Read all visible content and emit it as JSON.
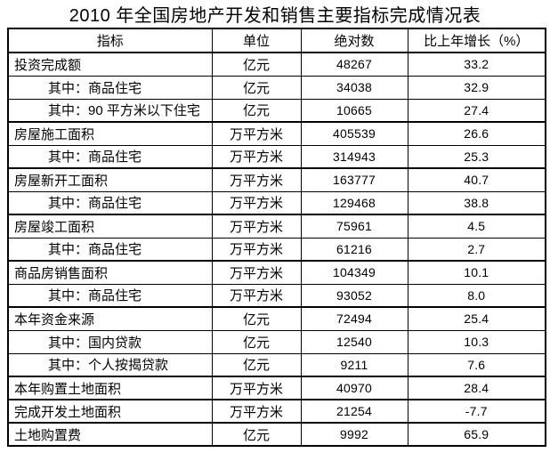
{
  "title": "2010 年全国房地产开发和销售主要指标完成情况表",
  "table": {
    "headers": [
      "指标",
      "单位",
      "绝对数",
      "比上年增长（%）"
    ],
    "rows": [
      {
        "indicator": "投资完成额",
        "indent": false,
        "unit": "亿元",
        "value": "48267",
        "growth": "33.2"
      },
      {
        "indicator": "其中：商品住宅",
        "indent": true,
        "unit": "亿元",
        "value": "34038",
        "growth": "32.9"
      },
      {
        "indicator": "其中：90 平方米以下住宅",
        "indent": true,
        "unit": "亿元",
        "value": "10665",
        "growth": "27.4"
      },
      {
        "indicator": "房屋施工面积",
        "indent": false,
        "unit": "万平方米",
        "value": "405539",
        "growth": "26.6"
      },
      {
        "indicator": "其中：商品住宅",
        "indent": true,
        "unit": "万平方米",
        "value": "314943",
        "growth": "25.3"
      },
      {
        "indicator": "房屋新开工面积",
        "indent": false,
        "unit": "万平方米",
        "value": "163777",
        "growth": "40.7"
      },
      {
        "indicator": "其中：商品住宅",
        "indent": true,
        "unit": "万平方米",
        "value": "129468",
        "growth": "38.8"
      },
      {
        "indicator": "房屋竣工面积",
        "indent": false,
        "unit": "万平方米",
        "value": "75961",
        "growth": "4.5"
      },
      {
        "indicator": "其中：商品住宅",
        "indent": true,
        "unit": "万平方米",
        "value": "61216",
        "growth": "2.7"
      },
      {
        "indicator": "商品房销售面积",
        "indent": false,
        "unit": "万平方米",
        "value": "104349",
        "growth": "10.1"
      },
      {
        "indicator": "其中：商品住宅",
        "indent": true,
        "unit": "万平方米",
        "value": "93052",
        "growth": "8.0"
      },
      {
        "indicator": "本年资金来源",
        "indent": false,
        "unit": "亿元",
        "value": "72494",
        "growth": "25.4"
      },
      {
        "indicator": "其中：国内贷款",
        "indent": true,
        "unit": "亿元",
        "value": "12540",
        "growth": "10.3"
      },
      {
        "indicator": "其中：个人按揭贷款",
        "indent": true,
        "unit": "亿元",
        "value": "9211",
        "growth": "7.6"
      },
      {
        "indicator": "本年购置土地面积",
        "indent": false,
        "unit": "万平方米",
        "value": "40970",
        "growth": "28.4"
      },
      {
        "indicator": "完成开发土地面积",
        "indent": false,
        "unit": "万平方米",
        "value": "21254",
        "growth": "-7.7"
      },
      {
        "indicator": "土地购置费",
        "indent": false,
        "unit": "亿元",
        "value": "9992",
        "growth": "65.9"
      }
    ]
  },
  "colors": {
    "border": "#000000",
    "text": "#000000",
    "background": "#ffffff"
  }
}
